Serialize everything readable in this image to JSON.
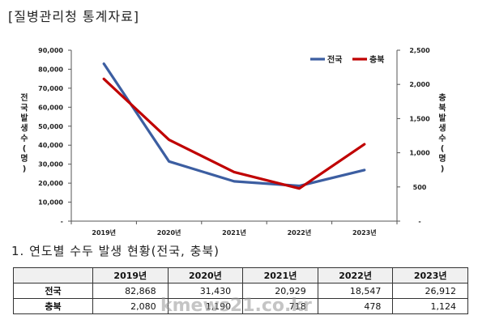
{
  "source_label": "[질병관리청 통계자료]",
  "table_title": "1. 연도별 수두 발생 현황(전국, 충북)",
  "watermark": "kmews21.co.kr",
  "colors": {
    "national": "#3c5ea1",
    "chungbuk": "#c00000"
  },
  "chart_data": {
    "type": "line",
    "categories": [
      "2019년",
      "2020년",
      "2021년",
      "2022년",
      "2023년"
    ],
    "series": [
      {
        "name": "전국",
        "axis": "left",
        "values": [
          82868,
          31430,
          20929,
          18547,
          26912
        ]
      },
      {
        "name": "충북",
        "axis": "right",
        "values": [
          2080,
          1190,
          718,
          478,
          1124
        ]
      }
    ],
    "ylabel_left": "전국발생수(명)",
    "ylabel_right": "충북발생수(명)",
    "ylim_left": [
      0,
      90000
    ],
    "ylim_right": [
      0,
      2500
    ],
    "yticks_left": [
      "90,000",
      "80,000",
      "70,000",
      "60,000",
      "50,000",
      "40,000",
      "30,000",
      "20,000",
      "10,000",
      "-"
    ],
    "yticks_right": [
      "2,500",
      "2,000",
      "1,500",
      "1,000",
      "500",
      "-"
    ],
    "legend_position": "top-right",
    "grid": false
  },
  "table": {
    "headers": [
      "",
      "2019년",
      "2020년",
      "2021년",
      "2022년",
      "2023년"
    ],
    "rows": [
      {
        "label": "전국",
        "cells": [
          "82,868",
          "31,430",
          "20,929",
          "18,547",
          "26,912"
        ]
      },
      {
        "label": "충북",
        "cells": [
          "2,080",
          "1,190",
          "718",
          "478",
          "1,124"
        ]
      }
    ]
  }
}
